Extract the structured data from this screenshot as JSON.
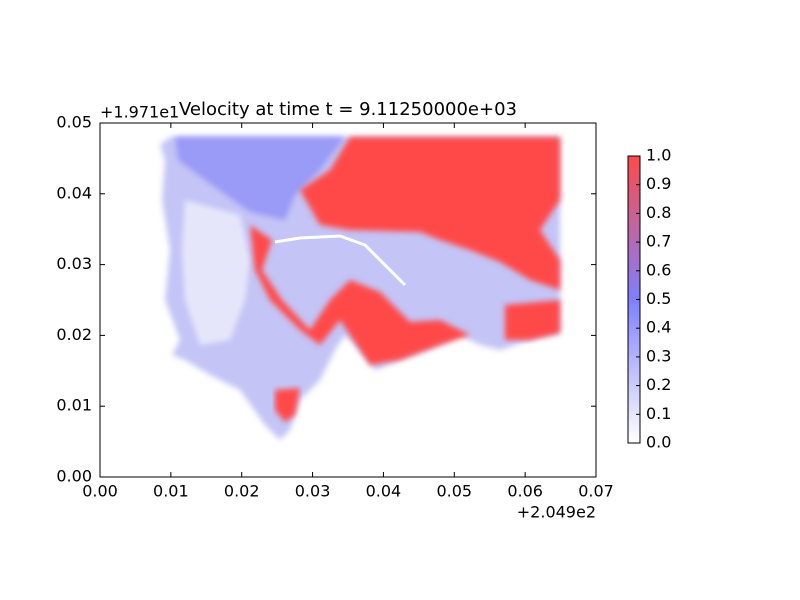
{
  "chart_data": {
    "type": "image",
    "title": "Velocity at time t = 9.11250000e+03",
    "x_offset_label": "+2.049e2",
    "y_offset_label": "+1.971e1",
    "xlim": [
      0,
      0.07
    ],
    "ylim": [
      0,
      0.05
    ],
    "xticks": [
      {
        "value": 0,
        "label": "0.00"
      },
      {
        "value": 0.01,
        "label": "0.01"
      },
      {
        "value": 0.02,
        "label": "0.02"
      },
      {
        "value": 0.03,
        "label": "0.03"
      },
      {
        "value": 0.04,
        "label": "0.04"
      },
      {
        "value": 0.05,
        "label": "0.05"
      },
      {
        "value": 0.06,
        "label": "0.06"
      },
      {
        "value": 0.07,
        "label": "0.07"
      }
    ],
    "yticks": [
      {
        "value": 0,
        "label": "0.00"
      },
      {
        "value": 0.01,
        "label": "0.01"
      },
      {
        "value": 0.02,
        "label": "0.02"
      },
      {
        "value": 0.03,
        "label": "0.03"
      },
      {
        "value": 0.04,
        "label": "0.04"
      },
      {
        "value": 0.05,
        "label": "0.05"
      }
    ],
    "colorbar": {
      "lim": [
        0,
        1
      ],
      "ticks": [
        {
          "value": 0,
          "label": "0.0"
        },
        {
          "value": 0.1,
          "label": "0.1"
        },
        {
          "value": 0.2,
          "label": "0.2"
        },
        {
          "value": 0.3,
          "label": "0.3"
        },
        {
          "value": 0.4,
          "label": "0.4"
        },
        {
          "value": 0.5,
          "label": "0.5"
        },
        {
          "value": 0.6,
          "label": "0.6"
        },
        {
          "value": 0.7,
          "label": "0.7"
        },
        {
          "value": 0.8,
          "label": "0.8"
        },
        {
          "value": 0.9,
          "label": "0.9"
        },
        {
          "value": 1,
          "label": "1.0"
        }
      ],
      "colormap": [
        "#ffffff",
        "#7f7fff",
        "#ff4a4a"
      ]
    }
  }
}
